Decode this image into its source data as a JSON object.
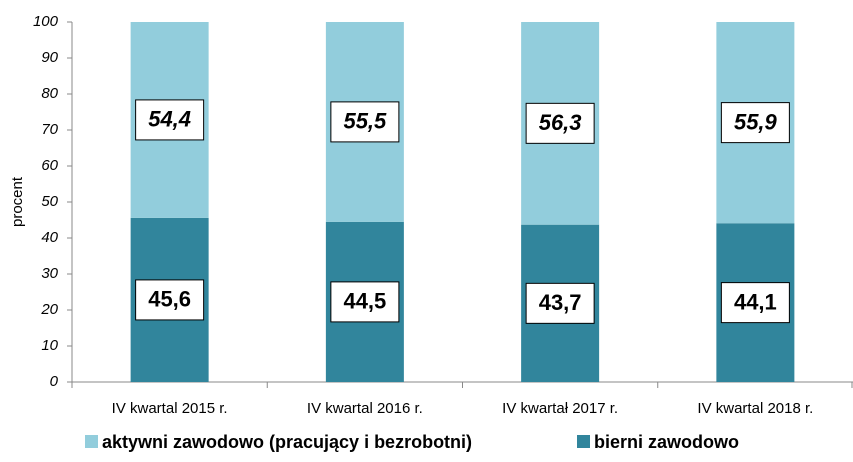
{
  "chart_data": {
    "type": "stacked_bar",
    "y_label": "procent",
    "categories": [
      "IV kwartal 2015 r.",
      "IV kwartal 2016 r.",
      "IV kwartał 2017 r.",
      "IV kwartal 2018 r."
    ],
    "series": [
      {
        "name": "aktywni zawodowo (pracujący i bezrobotni)",
        "color": "#92cddc",
        "values": [
          54.4,
          55.5,
          56.3,
          55.9
        ],
        "value_labels": [
          "54,4",
          "55,5",
          "56,3",
          "55,9"
        ]
      },
      {
        "name": "bierni zawodowo",
        "color": "#31859c",
        "values": [
          45.6,
          44.5,
          43.7,
          44.1
        ],
        "value_labels": [
          "45,6",
          "44,5",
          "43,7",
          "44,1"
        ]
      }
    ],
    "ylim": [
      0,
      100
    ],
    "yticks": [
      0,
      10,
      20,
      30,
      40,
      50,
      60,
      70,
      80,
      90,
      100
    ],
    "grid": false,
    "legend": "bottom"
  }
}
